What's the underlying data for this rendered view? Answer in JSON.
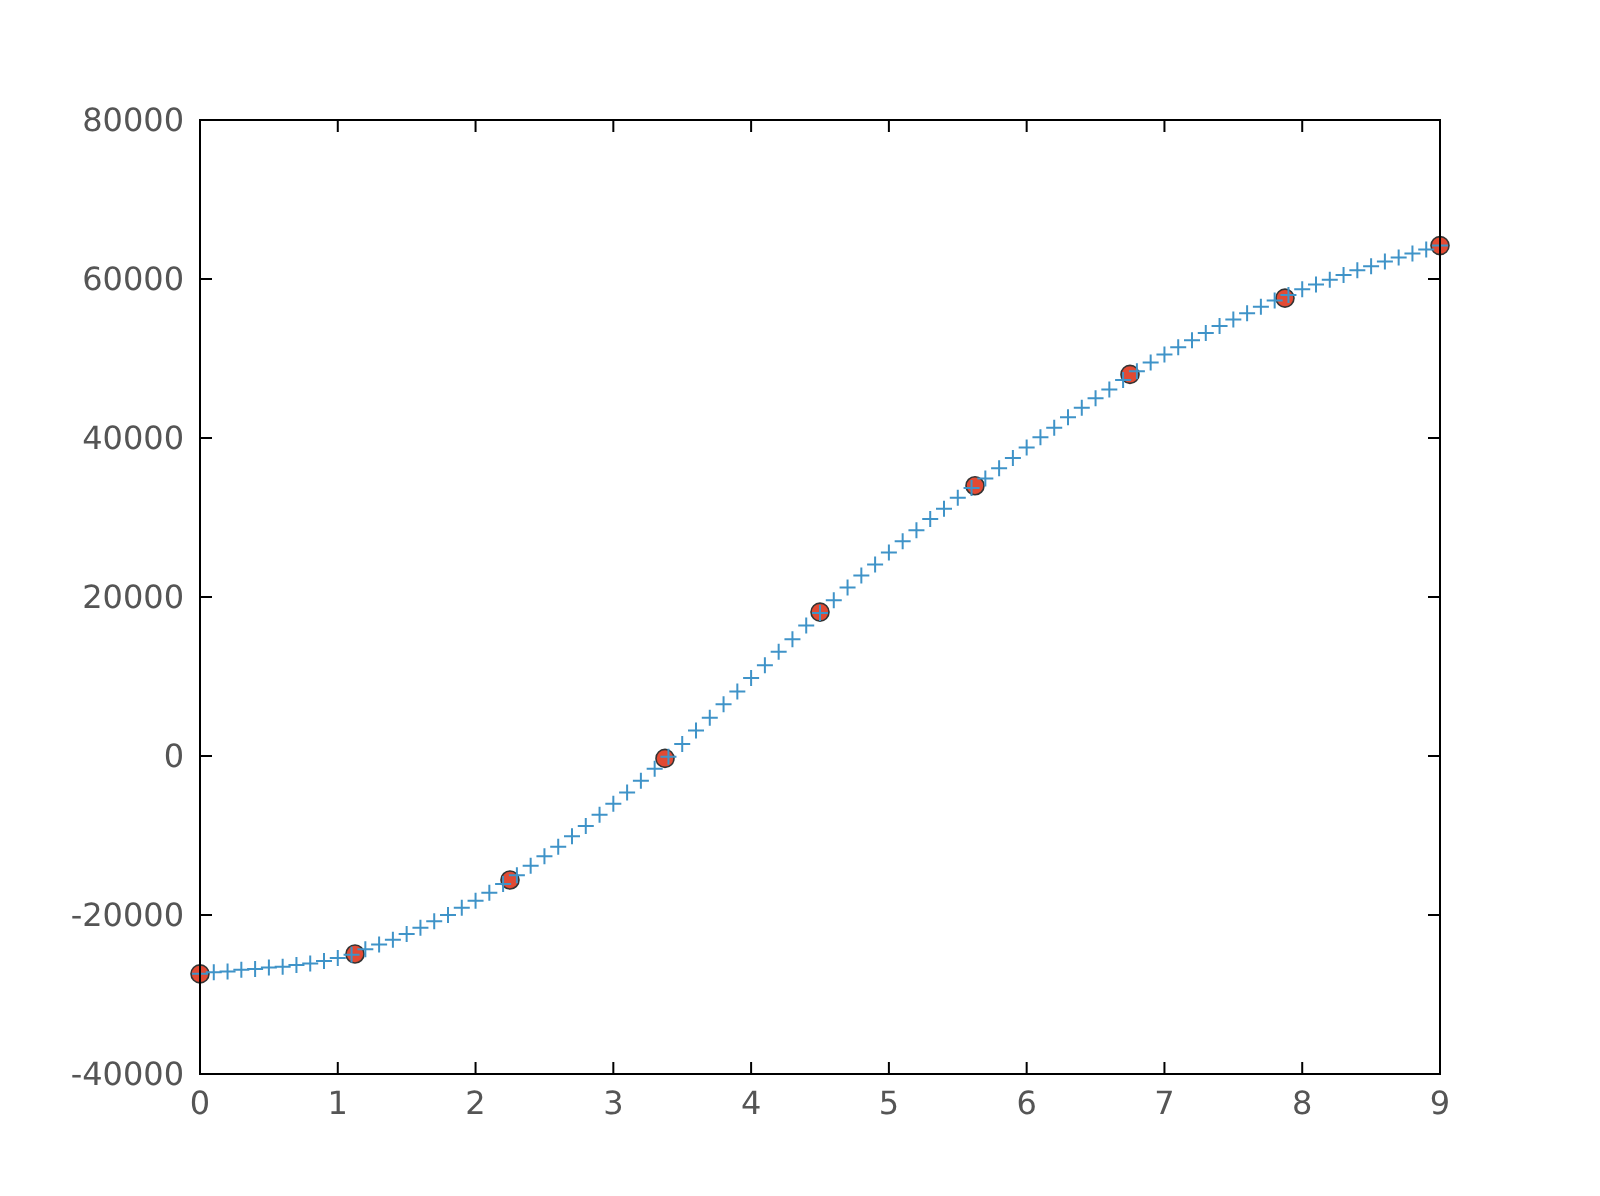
{
  "chart_data": {
    "type": "scatter",
    "xlim": [
      0,
      9
    ],
    "ylim": [
      -40000,
      80000
    ],
    "xticks": [
      0,
      1,
      2,
      3,
      4,
      5,
      6,
      7,
      8,
      9
    ],
    "yticks": [
      -40000,
      -20000,
      0,
      20000,
      40000,
      60000,
      80000
    ],
    "series": [
      {
        "marker": "cross",
        "color": "#3f93c8",
        "x": [
          0,
          0.1,
          0.2,
          0.3,
          0.4,
          0.5,
          0.6,
          0.7,
          0.8,
          0.9,
          1,
          1.1,
          1.2,
          1.3,
          1.4,
          1.5,
          1.6,
          1.7,
          1.8,
          1.9,
          2,
          2.1,
          2.2,
          2.3,
          2.4,
          2.5,
          2.6,
          2.7,
          2.8,
          2.9,
          3,
          3.1,
          3.2,
          3.3,
          3.4,
          3.5,
          3.6,
          3.7,
          3.8,
          3.9,
          4,
          4.1,
          4.2,
          4.3,
          4.4,
          4.5,
          4.6,
          4.7,
          4.8,
          4.9,
          5,
          5.1,
          5.2,
          5.3,
          5.4,
          5.5,
          5.6,
          5.7,
          5.8,
          5.9,
          6,
          6.1,
          6.2,
          6.3,
          6.4,
          6.5,
          6.6,
          6.7,
          6.8,
          6.9,
          7,
          7.1,
          7.2,
          7.3,
          7.4,
          7.5,
          7.6,
          7.7,
          7.8,
          7.9,
          8,
          8.1,
          8.2,
          8.3,
          8.4,
          8.5,
          8.6,
          8.7,
          8.8,
          8.9,
          9
        ],
        "values": [
          -27400,
          -27200,
          -27100,
          -26900,
          -26800,
          -26600,
          -26500,
          -26300,
          -26100,
          -25800,
          -25400,
          -25000,
          -24300,
          -23700,
          -23100,
          -22400,
          -21600,
          -20800,
          -20000,
          -19100,
          -18200,
          -17200,
          -16100,
          -15000,
          -13800,
          -12600,
          -11400,
          -10100,
          -8800,
          -7400,
          -6000,
          -4600,
          -3100,
          -1600,
          -100,
          1500,
          3200,
          4800,
          6500,
          8100,
          9800,
          11400,
          13100,
          14700,
          16400,
          18000,
          19600,
          21200,
          22700,
          24100,
          25600,
          27000,
          28400,
          29800,
          31100,
          32500,
          33700,
          34900,
          36200,
          37500,
          38800,
          40100,
          41300,
          42600,
          43800,
          45000,
          46100,
          47300,
          48400,
          49500,
          50500,
          51400,
          52300,
          53200,
          54100,
          54900,
          55700,
          56500,
          57300,
          58000,
          58700,
          59300,
          59900,
          60500,
          61100,
          61600,
          62200,
          62700,
          63200,
          63700,
          64200
        ]
      },
      {
        "marker": "circle",
        "color": "#e24a33",
        "x": [
          0,
          1.125,
          2.25,
          3.375,
          4.5,
          5.625,
          6.75,
          7.875,
          9
        ],
        "values": [
          -27400,
          -24900,
          -15600,
          -300,
          18100,
          34000,
          48000,
          57600,
          64200
        ]
      }
    ]
  }
}
